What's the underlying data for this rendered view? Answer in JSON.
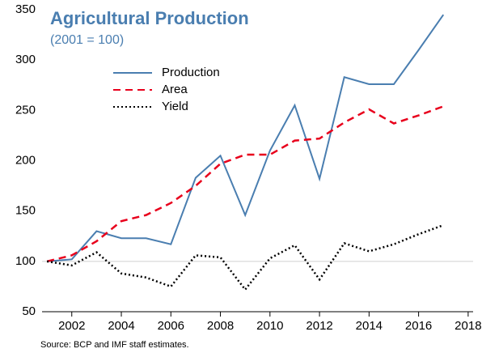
{
  "chart_data": {
    "type": "line",
    "title": "Agricultural Production",
    "subtitle": "(2001 = 100)",
    "source": "Source: BCP and IMF staff estimates.",
    "x": [
      2001,
      2002,
      2003,
      2004,
      2005,
      2006,
      2007,
      2008,
      2009,
      2010,
      2011,
      2012,
      2013,
      2014,
      2015,
      2016,
      2017
    ],
    "series": [
      {
        "name": "Production",
        "color": "#4a7eb0",
        "dash": "solid",
        "values": [
          100,
          102,
          130,
          123,
          123,
          117,
          183,
          205,
          146,
          210,
          255,
          182,
          283,
          276,
          276,
          310,
          345
        ]
      },
      {
        "name": "Area",
        "color": "#e8001c",
        "dash": "dashed",
        "values": [
          100,
          106,
          120,
          140,
          146,
          158,
          175,
          197,
          206,
          206,
          220,
          222,
          238,
          251,
          237,
          245,
          254
        ]
      },
      {
        "name": "Yield",
        "color": "#000000",
        "dash": "dotted",
        "values": [
          100,
          96,
          109,
          88,
          84,
          75,
          106,
          104,
          72,
          103,
          116,
          82,
          118,
          110,
          117,
          127,
          136
        ]
      }
    ],
    "xlim": [
      2000.8,
      2018.2
    ],
    "xticks": [
      2002,
      2004,
      2006,
      2008,
      2010,
      2012,
      2014,
      2016,
      2018
    ],
    "ylim": [
      50,
      350
    ],
    "yticks": [
      50,
      100,
      150,
      200,
      250,
      300,
      350
    ],
    "gridlines": [
      100
    ]
  }
}
